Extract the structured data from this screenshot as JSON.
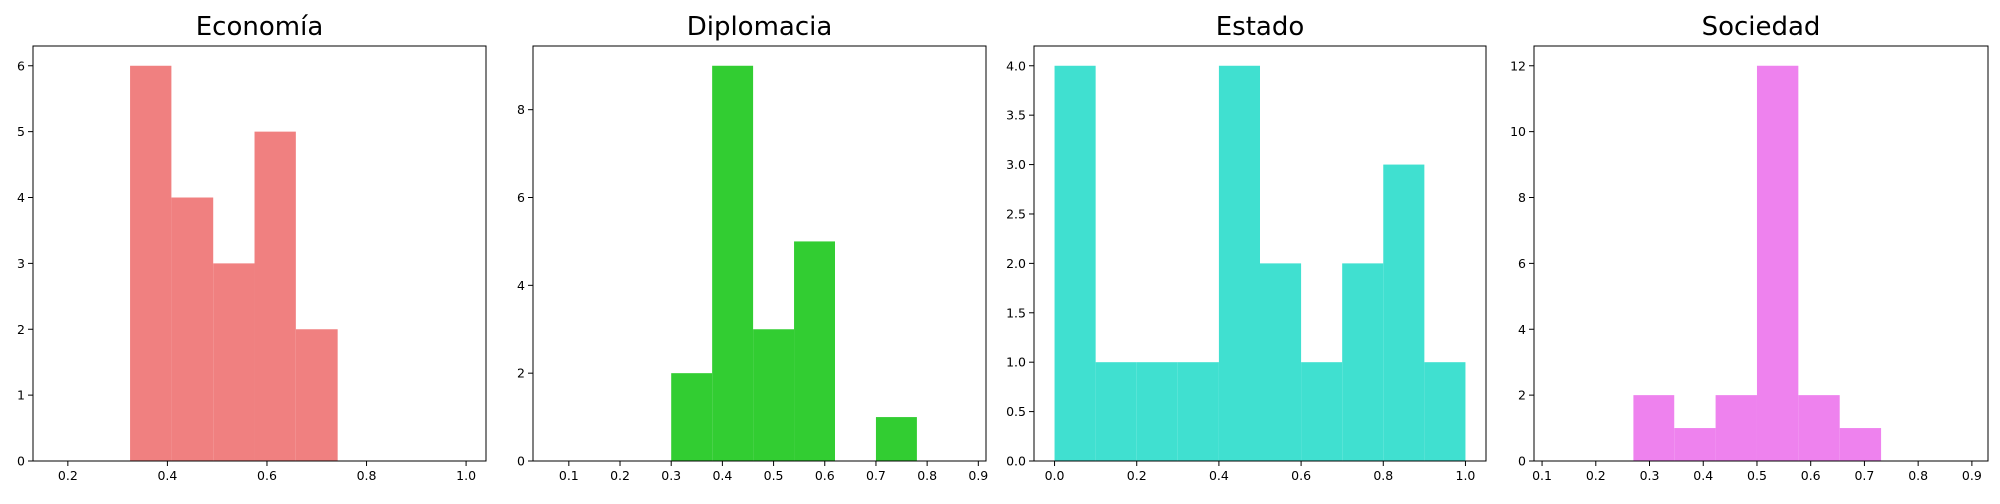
{
  "chart_data": [
    {
      "type": "bar",
      "subtype": "histogram",
      "title": "Economía",
      "color": "#f08080",
      "xlim": [
        0.13,
        1.04
      ],
      "ylim": [
        0,
        6.3
      ],
      "xticks": [
        0.2,
        0.4,
        0.6,
        0.8,
        1.0
      ],
      "xtick_labels": [
        "0.2",
        "0.4",
        "0.6",
        "0.8",
        "1.0"
      ],
      "yticks": [
        0,
        1,
        2,
        3,
        4,
        5,
        6
      ],
      "ytick_labels": [
        "0",
        "1",
        "2",
        "3",
        "4",
        "5",
        "6"
      ],
      "bins": [
        {
          "x0": 0.325,
          "x1": 0.408,
          "count": 6
        },
        {
          "x0": 0.408,
          "x1": 0.492,
          "count": 4
        },
        {
          "x0": 0.492,
          "x1": 0.575,
          "count": 3
        },
        {
          "x0": 0.575,
          "x1": 0.658,
          "count": 5
        },
        {
          "x0": 0.658,
          "x1": 0.742,
          "count": 2
        }
      ]
    },
    {
      "type": "bar",
      "subtype": "histogram",
      "title": "Diplomacia",
      "color": "#32cd32",
      "xlim": [
        0.03,
        0.915
      ],
      "ylim": [
        0,
        9.45
      ],
      "xticks": [
        0.1,
        0.2,
        0.3,
        0.4,
        0.5,
        0.6,
        0.7,
        0.8,
        0.9
      ],
      "xtick_labels": [
        "0.1",
        "0.2",
        "0.3",
        "0.4",
        "0.5",
        "0.6",
        "0.7",
        "0.8",
        "0.9"
      ],
      "yticks": [
        0,
        2,
        4,
        6,
        8
      ],
      "ytick_labels": [
        "0",
        "2",
        "4",
        "6",
        "8"
      ],
      "bins": [
        {
          "x0": 0.3,
          "x1": 0.38,
          "count": 2
        },
        {
          "x0": 0.38,
          "x1": 0.46,
          "count": 9
        },
        {
          "x0": 0.46,
          "x1": 0.54,
          "count": 3
        },
        {
          "x0": 0.54,
          "x1": 0.62,
          "count": 5
        },
        {
          "x0": 0.7,
          "x1": 0.78,
          "count": 1
        }
      ]
    },
    {
      "type": "bar",
      "subtype": "histogram",
      "title": "Estado",
      "color": "#40e0d0",
      "xlim": [
        -0.05,
        1.05
      ],
      "ylim": [
        0,
        4.2
      ],
      "xticks": [
        0.0,
        0.2,
        0.4,
        0.6,
        0.8,
        1.0
      ],
      "xtick_labels": [
        "0.0",
        "0.2",
        "0.4",
        "0.6",
        "0.8",
        "1.0"
      ],
      "yticks": [
        0,
        0.5,
        1.0,
        1.5,
        2.0,
        2.5,
        3.0,
        3.5,
        4.0
      ],
      "ytick_labels": [
        "0.0",
        "0.5",
        "1.0",
        "1.5",
        "2.0",
        "2.5",
        "3.0",
        "3.5",
        "4.0"
      ],
      "bins": [
        {
          "x0": 0.0,
          "x1": 0.1,
          "count": 4
        },
        {
          "x0": 0.1,
          "x1": 0.2,
          "count": 1
        },
        {
          "x0": 0.2,
          "x1": 0.3,
          "count": 1
        },
        {
          "x0": 0.3,
          "x1": 0.4,
          "count": 1
        },
        {
          "x0": 0.4,
          "x1": 0.5,
          "count": 4
        },
        {
          "x0": 0.5,
          "x1": 0.6,
          "count": 2
        },
        {
          "x0": 0.6,
          "x1": 0.7,
          "count": 1
        },
        {
          "x0": 0.7,
          "x1": 0.8,
          "count": 2
        },
        {
          "x0": 0.8,
          "x1": 0.9,
          "count": 3
        },
        {
          "x0": 0.9,
          "x1": 1.0,
          "count": 1
        }
      ]
    },
    {
      "type": "bar",
      "subtype": "histogram",
      "title": "Sociedad",
      "color": "#ee82ee",
      "xlim": [
        0.085,
        0.93
      ],
      "ylim": [
        0,
        12.6
      ],
      "xticks": [
        0.1,
        0.2,
        0.3,
        0.4,
        0.5,
        0.6,
        0.7,
        0.8,
        0.9
      ],
      "xtick_labels": [
        "0.1",
        "0.2",
        "0.3",
        "0.4",
        "0.5",
        "0.6",
        "0.7",
        "0.8",
        "0.9"
      ],
      "yticks": [
        0,
        2,
        4,
        6,
        8,
        10,
        12
      ],
      "ytick_labels": [
        "0",
        "2",
        "4",
        "6",
        "8",
        "10",
        "12"
      ],
      "bins": [
        {
          "x0": 0.27,
          "x1": 0.346,
          "count": 2
        },
        {
          "x0": 0.346,
          "x1": 0.423,
          "count": 1
        },
        {
          "x0": 0.423,
          "x1": 0.5,
          "count": 2
        },
        {
          "x0": 0.5,
          "x1": 0.577,
          "count": 12
        },
        {
          "x0": 0.577,
          "x1": 0.654,
          "count": 2
        },
        {
          "x0": 0.654,
          "x1": 0.731,
          "count": 1
        }
      ]
    }
  ]
}
